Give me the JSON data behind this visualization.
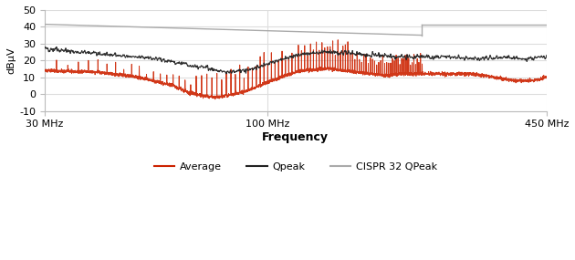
{
  "xlabel": "Frequency",
  "ylabel": "dBµV",
  "xlim_log": [
    30,
    450
  ],
  "ylim": [
    -10,
    50
  ],
  "yticks": [
    -10,
    0,
    10,
    20,
    30,
    40,
    50
  ],
  "xtick_labels": [
    "30 MHz",
    "100 MHz",
    "450 MHz"
  ],
  "xtick_positions": [
    30,
    100,
    450
  ],
  "legend_entries": [
    "Average",
    "Qpeak",
    "CISPR 32 QPeak"
  ],
  "colors": {
    "average": "#cc2200",
    "qpeak": "#222222",
    "cispr": "#aaaaaa"
  },
  "cispr_limit": {
    "x": [
      30,
      230,
      230,
      450
    ],
    "y": [
      41.5,
      35.0,
      41.5,
      41.5
    ]
  },
  "background": "#ffffff",
  "grid_color": "#dddddd",
  "qpeak_envelope": {
    "freqs_mhz": [
      30,
      40,
      55,
      70,
      80,
      90,
      100,
      110,
      120,
      140,
      160,
      200,
      230,
      270,
      310,
      360,
      400,
      450
    ],
    "vals": [
      27,
      24,
      21,
      16,
      13,
      14,
      18,
      21,
      24,
      25,
      24,
      22,
      22,
      22,
      21,
      22,
      21,
      22
    ]
  },
  "avg_envelope": {
    "freqs_mhz": [
      30,
      40,
      50,
      60,
      65,
      70,
      75,
      80,
      90,
      100,
      110,
      120,
      140,
      160,
      190,
      210,
      230,
      260,
      300,
      340,
      380,
      420,
      450
    ],
    "vals": [
      14,
      13,
      10,
      5,
      1,
      -1,
      -2,
      -1,
      2,
      7,
      11,
      14,
      15,
      13,
      11,
      12,
      12,
      12,
      12,
      10,
      8,
      8,
      10
    ]
  },
  "spike_freqs_mhz": [
    32,
    34,
    36,
    38,
    40,
    42,
    44,
    46,
    48,
    50,
    52,
    54,
    56,
    58,
    60,
    62,
    64,
    66,
    68,
    70,
    72,
    74,
    76,
    78,
    80,
    82,
    84,
    86,
    88,
    90,
    92,
    94,
    96,
    98,
    100,
    102,
    104,
    106,
    108,
    110,
    112,
    114,
    116,
    118,
    120,
    122,
    124,
    126,
    128,
    130,
    132,
    134,
    136,
    138,
    140,
    142,
    144,
    146,
    148,
    150,
    152,
    154,
    156,
    158,
    160,
    162,
    164,
    166,
    168,
    170,
    172,
    174,
    176,
    178,
    180,
    182,
    184,
    186,
    188,
    190,
    192,
    194,
    196,
    198,
    200,
    202,
    204,
    206,
    208,
    210,
    212,
    214,
    216,
    218,
    220,
    222,
    224,
    226,
    228,
    230
  ],
  "noise_seed": 12345
}
